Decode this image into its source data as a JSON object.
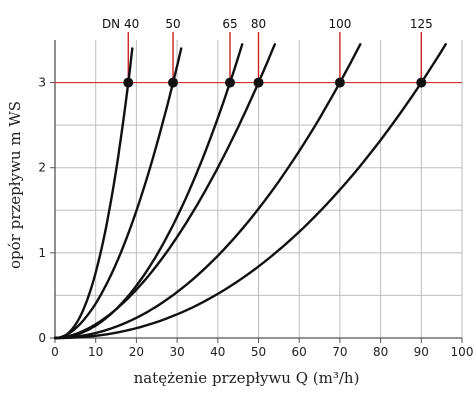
{
  "chart_data": {
    "type": "line",
    "title": "",
    "xlabel": "natężenie przepływu Q (m³/h)",
    "ylabel": "opór przepływu m WS",
    "xlim": [
      0,
      100
    ],
    "ylim": [
      0,
      3.5
    ],
    "x_ticks": [
      0,
      10,
      20,
      30,
      40,
      50,
      60,
      70,
      80,
      90,
      100
    ],
    "y_ticks": [
      0,
      1,
      2,
      3
    ],
    "grid": true,
    "reference_line": {
      "y": 3,
      "color": "#cc2222"
    },
    "curve_color": "#111111",
    "marker_color": "#111111",
    "series": [
      {
        "label": "DN 40",
        "x": [
          0,
          5,
          10,
          15,
          18,
          19
        ],
        "y": [
          0,
          0.23,
          0.93,
          2.08,
          3.0,
          3.4
        ]
      },
      {
        "label": "50",
        "x": [
          0,
          7.5,
          15,
          22.5,
          29,
          31
        ],
        "y": [
          0,
          0.2,
          0.8,
          1.81,
          3.0,
          3.4
        ]
      },
      {
        "label": "65",
        "x": [
          0,
          10,
          20,
          30,
          43,
          46
        ],
        "y": [
          0,
          0.16,
          0.65,
          1.46,
          3.0,
          3.45
        ]
      },
      {
        "label": "80",
        "x": [
          0,
          12,
          25,
          37,
          50,
          54
        ],
        "y": [
          0,
          0.17,
          0.75,
          1.64,
          3.0,
          3.45
        ]
      },
      {
        "label": "100",
        "x": [
          0,
          17,
          35,
          52,
          70,
          75
        ],
        "y": [
          0,
          0.18,
          0.75,
          1.66,
          3.0,
          3.45
        ]
      },
      {
        "label": "125",
        "x": [
          0,
          22,
          45,
          67,
          90,
          96
        ],
        "y": [
          0,
          0.18,
          0.75,
          1.66,
          3.0,
          3.45
        ]
      }
    ],
    "markers": [
      {
        "label": "DN 40",
        "x": 18,
        "y": 3
      },
      {
        "label": "50",
        "x": 29,
        "y": 3
      },
      {
        "label": "65",
        "x": 43,
        "y": 3
      },
      {
        "label": "80",
        "x": 50,
        "y": 3
      },
      {
        "label": "100",
        "x": 70,
        "y": 3
      },
      {
        "label": "125",
        "x": 90,
        "y": 3
      }
    ]
  }
}
